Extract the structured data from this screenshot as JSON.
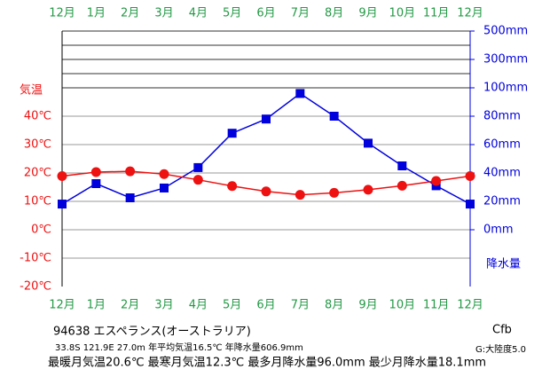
{
  "chart_data": {
    "type": "line",
    "categories": [
      "12月",
      "1月",
      "2月",
      "3月",
      "4月",
      "5月",
      "6月",
      "7月",
      "8月",
      "9月",
      "10月",
      "11月",
      "12月"
    ],
    "series": [
      {
        "name": "気温",
        "color": "#ee1111",
        "marker": "circle",
        "axis": "y",
        "values": [
          18.9,
          20.3,
          20.6,
          19.6,
          17.6,
          15.4,
          13.5,
          12.3,
          13.0,
          14.1,
          15.5,
          17.2,
          18.9
        ]
      },
      {
        "name": "降水量",
        "color": "#0000dd",
        "marker": "square",
        "axis": "y2",
        "values": [
          18.1,
          32.5,
          22.5,
          29.4,
          43.8,
          68.0,
          78.0,
          96.0,
          80.0,
          61.0,
          45.0,
          31.0,
          18.1
        ]
      }
    ],
    "ylabel": "気温",
    "y2label": "降水量",
    "ylim": [
      -20,
      70
    ],
    "yticks": [
      {
        "value": -20,
        "label": "-20℃"
      },
      {
        "value": -10,
        "label": "-10℃"
      },
      {
        "value": 0,
        "label": "0℃"
      },
      {
        "value": 10,
        "label": "10℃"
      },
      {
        "value": 20,
        "label": "20℃"
      },
      {
        "value": 30,
        "label": "30℃"
      },
      {
        "value": 40,
        "label": "40℃"
      }
    ],
    "y2lim": [
      0,
      500
    ],
    "y2ticks": [
      {
        "value": 0,
        "label": "0mm"
      },
      {
        "value": 20,
        "label": "20mm"
      },
      {
        "value": 40,
        "label": "40mm"
      },
      {
        "value": 60,
        "label": "60mm"
      },
      {
        "value": 80,
        "label": "80mm"
      },
      {
        "value": 100,
        "label": "100mm"
      },
      {
        "value": 300,
        "label": "300mm"
      },
      {
        "value": 500,
        "label": "500mm"
      }
    ],
    "grid": true,
    "station": "94638  エスペランス(オーストラリア)",
    "climate": "Cfb",
    "info1": "33.8S  121.9E  27.0m  年平均気温16.5℃  年降水量606.9mm",
    "continentality": "G:大陸度5.0",
    "info2": "最暖月気温20.6℃ 最寒月気温12.3℃ 最多月降水量96.0mm 最少月降水量18.1mm"
  }
}
